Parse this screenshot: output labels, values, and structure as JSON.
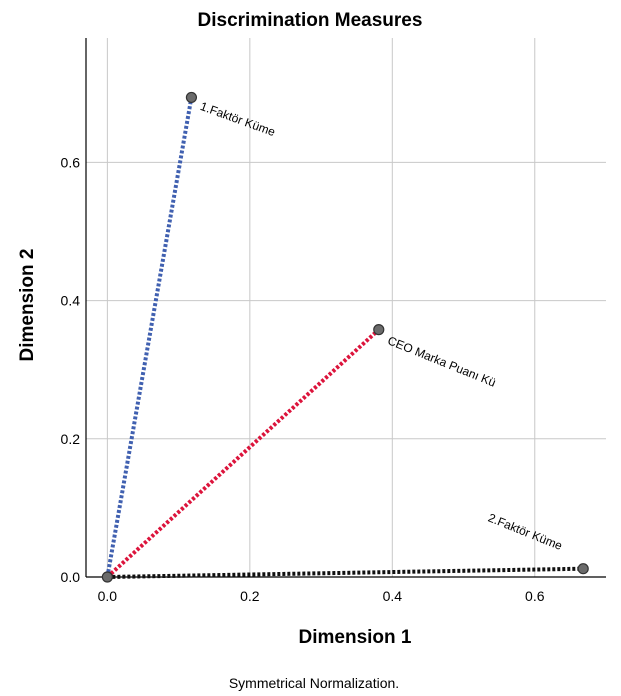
{
  "chart_data": {
    "type": "line",
    "title": "Discrimination Measures",
    "xlabel": "Dimension 1",
    "ylabel": "Dimension 2",
    "footnote": "Symmetrical Normalization.",
    "xlim": [
      -0.03,
      0.7
    ],
    "ylim": [
      0.0,
      0.78
    ],
    "xticks": [
      0.0,
      0.2,
      0.4,
      0.6
    ],
    "yticks": [
      0.0,
      0.2,
      0.4,
      0.6
    ],
    "xtick_labels": [
      "0.0",
      "0.2",
      "0.4",
      "0.6"
    ],
    "ytick_labels": [
      "0.0",
      "0.2",
      "0.4",
      "0.6"
    ],
    "grid": true,
    "origin": [
      0.0,
      0.0
    ],
    "series": [
      {
        "label": "1.Faktör Küme",
        "x": 0.118,
        "y": 0.694,
        "color": "#4060b0"
      },
      {
        "label": "CEO Marka Puanı Kü",
        "x": 0.381,
        "y": 0.358,
        "color": "#dc143c"
      },
      {
        "label": "2.Faktör Küme",
        "x": 0.668,
        "y": 0.012,
        "color": "#111111"
      }
    ]
  }
}
